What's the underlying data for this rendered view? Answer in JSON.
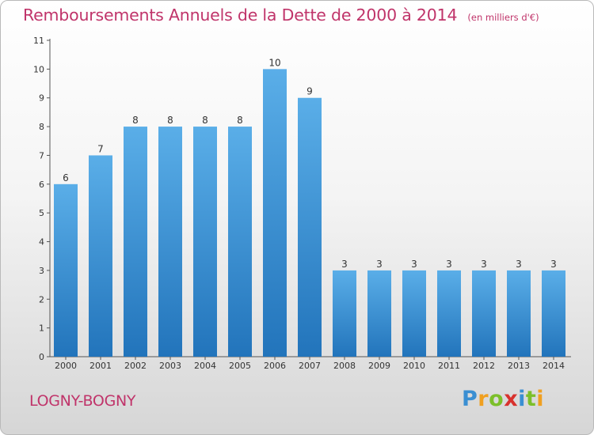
{
  "title": "Remboursements Annuels de la Dette de 2000 à 2014",
  "unit_note": "(en milliers d'€)",
  "commune": "LOGNY-BOGNY",
  "logo_text": "Proxiti",
  "colors": {
    "title": "#c0346a",
    "bar_top": "#5aaee8",
    "bar_bottom": "#2274bb",
    "axis": "#555555"
  },
  "chart_data": {
    "type": "bar",
    "categories": [
      "2000",
      "2001",
      "2002",
      "2003",
      "2004",
      "2005",
      "2006",
      "2007",
      "2008",
      "2009",
      "2010",
      "2011",
      "2012",
      "2013",
      "2014"
    ],
    "values": [
      6,
      7,
      8,
      8,
      8,
      8,
      10,
      9,
      3,
      3,
      3,
      3,
      3,
      3,
      3
    ],
    "data_labels": [
      "6",
      "7",
      "8",
      "8",
      "8",
      "8",
      "10",
      "9",
      "3",
      "3",
      "3",
      "3",
      "3",
      "3",
      "3"
    ],
    "ylim": [
      0,
      11
    ],
    "yticks": [
      "0",
      "1",
      "2",
      "3",
      "4",
      "5",
      "6",
      "7",
      "8",
      "9",
      "10",
      "11"
    ],
    "title": "Remboursements Annuels de la Dette de 2000 à 2014",
    "xlabel": "",
    "ylabel": "",
    "grid": false,
    "legend": "none"
  }
}
